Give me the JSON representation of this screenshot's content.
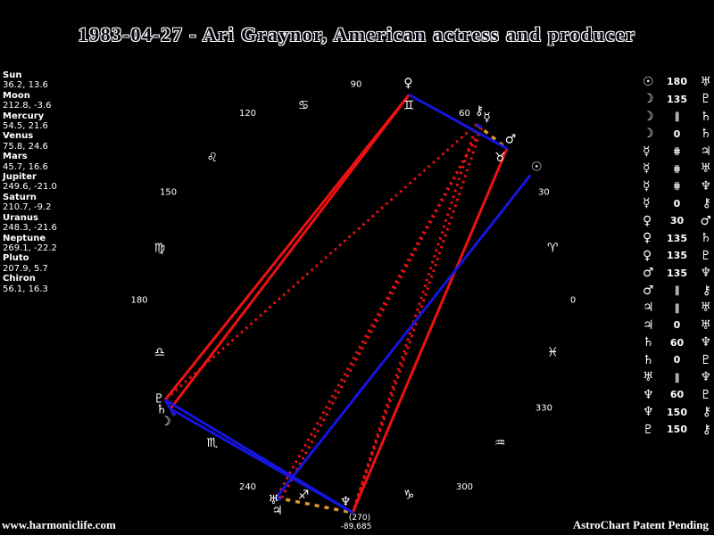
{
  "title": "1983-04-27 - Ari Graynor, American actress and producer",
  "footer": {
    "site": "www.harmoniclife.com",
    "patent": "AstroChart Patent Pending"
  },
  "colors": {
    "background": "#000000",
    "text": "#ffffff",
    "hard_aspect": "#ee1111",
    "soft_aspect": "#1515dd",
    "parallel_aspect": "#dd9928"
  },
  "planet_panel": [
    {
      "name": "Sun",
      "values": "36.2, 13.6"
    },
    {
      "name": "Moon",
      "values": "212.8, -3.6"
    },
    {
      "name": "Mercury",
      "values": "54.5, 21.6"
    },
    {
      "name": "Venus",
      "values": "75.8, 24.6"
    },
    {
      "name": "Mars",
      "values": "45.7, 16.6"
    },
    {
      "name": "Jupiter",
      "values": "249.6, -21.0"
    },
    {
      "name": "Saturn",
      "values": "210.7, -9.2"
    },
    {
      "name": "Uranus",
      "values": "248.3, -21.6"
    },
    {
      "name": "Neptune",
      "values": "269.1, -22.2"
    },
    {
      "name": "Pluto",
      "values": "207.9, 5.7"
    },
    {
      "name": "Chiron",
      "values": "56.1, 16.3"
    }
  ],
  "aspect_table": [
    {
      "p1": "☉",
      "aspect": "180",
      "p2": "♅"
    },
    {
      "p1": "☽",
      "aspect": "135",
      "p2": "♇"
    },
    {
      "p1": "☽",
      "aspect": "∥",
      "p2": "♄"
    },
    {
      "p1": "☽",
      "aspect": "0",
      "p2": "♄"
    },
    {
      "p1": "☿",
      "aspect": "⋕",
      "p2": "♃"
    },
    {
      "p1": "☿",
      "aspect": "⋕",
      "p2": "♅"
    },
    {
      "p1": "☿",
      "aspect": "⋕",
      "p2": "♆"
    },
    {
      "p1": "☿",
      "aspect": "0",
      "p2": "⚷"
    },
    {
      "p1": "♀",
      "aspect": "30",
      "p2": "♂"
    },
    {
      "p1": "♀",
      "aspect": "135",
      "p2": "♄"
    },
    {
      "p1": "♀",
      "aspect": "135",
      "p2": "♇"
    },
    {
      "p1": "♂",
      "aspect": "135",
      "p2": "♆"
    },
    {
      "p1": "♂",
      "aspect": "∥",
      "p2": "⚷"
    },
    {
      "p1": "♃",
      "aspect": "∥",
      "p2": "♅"
    },
    {
      "p1": "♃",
      "aspect": "0",
      "p2": "♅"
    },
    {
      "p1": "♄",
      "aspect": "60",
      "p2": "♆"
    },
    {
      "p1": "♄",
      "aspect": "0",
      "p2": "♇"
    },
    {
      "p1": "♅",
      "aspect": "∥",
      "p2": "♆"
    },
    {
      "p1": "♆",
      "aspect": "60",
      "p2": "♇"
    },
    {
      "p1": "♆",
      "aspect": "150",
      "p2": "⚷"
    },
    {
      "p1": "♇",
      "aspect": "150",
      "p2": "⚷"
    }
  ],
  "chart_data": {
    "type": "astro-wheel",
    "description": "Natal planets plotted on a 360-degree ecliptic circle, 0 at right, counterclockwise; aspect lines connect planet positions",
    "planets": [
      {
        "name": "Sun",
        "glyph": "☉",
        "lon": 36.2,
        "dec": 13.6
      },
      {
        "name": "Moon",
        "glyph": "☽",
        "lon": 212.8,
        "dec": -3.6
      },
      {
        "name": "Mercury",
        "glyph": "☿",
        "lon": 54.5,
        "dec": 21.6
      },
      {
        "name": "Venus",
        "glyph": "♀",
        "lon": 75.8,
        "dec": 24.6
      },
      {
        "name": "Mars",
        "glyph": "♂",
        "lon": 45.7,
        "dec": 16.6
      },
      {
        "name": "Jupiter",
        "glyph": "♃",
        "lon": 249.6,
        "dec": -21.0
      },
      {
        "name": "Saturn",
        "glyph": "♄",
        "lon": 210.7,
        "dec": -9.2
      },
      {
        "name": "Uranus",
        "glyph": "♅",
        "lon": 248.3,
        "dec": -21.6
      },
      {
        "name": "Neptune",
        "glyph": "♆",
        "lon": 269.1,
        "dec": -22.2
      },
      {
        "name": "Pluto",
        "glyph": "♇",
        "lon": 207.9,
        "dec": 5.7
      },
      {
        "name": "Chiron",
        "glyph": "⚷",
        "lon": 56.1,
        "dec": 16.3
      }
    ],
    "signs": [
      {
        "name": "aries",
        "glyph": "♈"
      },
      {
        "name": "taurus",
        "glyph": "♉"
      },
      {
        "name": "gemini",
        "glyph": "♊"
      },
      {
        "name": "cancer",
        "glyph": "♋"
      },
      {
        "name": "leo",
        "glyph": "♌"
      },
      {
        "name": "virgo",
        "glyph": "♍"
      },
      {
        "name": "libra",
        "glyph": "♎"
      },
      {
        "name": "scorpio",
        "glyph": "♏"
      },
      {
        "name": "sagittarius",
        "glyph": "♐"
      },
      {
        "name": "capricorn",
        "glyph": "♑"
      },
      {
        "name": "aquarius",
        "glyph": "♒"
      },
      {
        "name": "pisces",
        "glyph": "♓"
      }
    ],
    "degree_labels": [
      "0",
      "30",
      "60",
      "90",
      "120",
      "150",
      "180",
      "240",
      "300",
      "330"
    ],
    "bottom_annotation": [
      "(270)",
      "-89,685"
    ],
    "aspect_lines": [
      {
        "a": "Sun",
        "b": "Uranus",
        "type": "180",
        "style": "blue"
      },
      {
        "a": "Venus",
        "b": "Mars",
        "type": "30",
        "style": "blue"
      },
      {
        "a": "Saturn",
        "b": "Neptune",
        "type": "60",
        "style": "blue"
      },
      {
        "a": "Pluto",
        "b": "Neptune",
        "type": "60",
        "style": "blue"
      },
      {
        "a": "Moon",
        "b": "Saturn",
        "type": "0",
        "style": "blue"
      },
      {
        "a": "Saturn",
        "b": "Pluto",
        "type": "0",
        "style": "blue"
      },
      {
        "a": "Jupiter",
        "b": "Uranus",
        "type": "0",
        "style": "blue"
      },
      {
        "a": "Mercury",
        "b": "Chiron",
        "type": "0",
        "style": "blue"
      },
      {
        "a": "Venus",
        "b": "Saturn",
        "type": "135",
        "style": "red"
      },
      {
        "a": "Venus",
        "b": "Pluto",
        "type": "135",
        "style": "red"
      },
      {
        "a": "Mars",
        "b": "Neptune",
        "type": "135",
        "style": "red"
      },
      {
        "a": "Moon",
        "b": "Pluto",
        "type": "135",
        "style": "red"
      },
      {
        "a": "Mercury",
        "b": "Jupiter",
        "type": "⋕",
        "style": "red-dotted"
      },
      {
        "a": "Mercury",
        "b": "Uranus",
        "type": "⋕",
        "style": "red-dotted"
      },
      {
        "a": "Mercury",
        "b": "Neptune",
        "type": "⋕",
        "style": "red-dotted"
      },
      {
        "a": "Chiron",
        "b": "Neptune",
        "type": "150",
        "style": "red-dotted"
      },
      {
        "a": "Chiron",
        "b": "Pluto",
        "type": "150",
        "style": "red-dotted"
      },
      {
        "a": "Chiron",
        "b": "Mars",
        "type": "∥",
        "style": "orange-dashed"
      },
      {
        "a": "Moon",
        "b": "Saturn",
        "type": "∥",
        "style": "orange-dashed"
      },
      {
        "a": "Jupiter",
        "b": "Uranus",
        "type": "∥",
        "style": "orange-dashed"
      },
      {
        "a": "Uranus",
        "b": "Neptune",
        "type": "∥",
        "style": "orange-dashed"
      }
    ]
  }
}
